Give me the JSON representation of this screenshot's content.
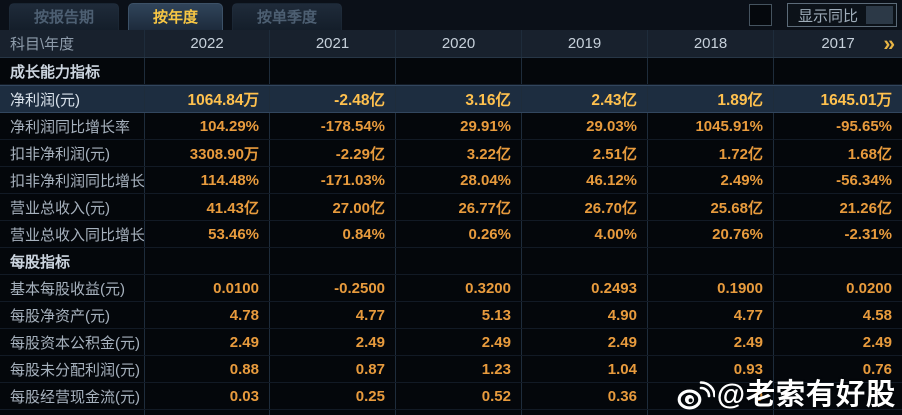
{
  "tabs": [
    {
      "label": "按报告期",
      "active": false
    },
    {
      "label": "按年度",
      "active": true
    },
    {
      "label": "按单季度",
      "active": false
    }
  ],
  "controls": {
    "yoy_checkbox_checked": false,
    "show_yoy_label": "显示同比"
  },
  "table": {
    "corner_label": "科目\\年度",
    "years": [
      "2022",
      "2021",
      "2020",
      "2019",
      "2018",
      "2017"
    ],
    "more_label": "»",
    "rows": [
      {
        "type": "section",
        "label": "成长能力指标"
      },
      {
        "type": "data",
        "label": "净利润(元)",
        "highlight": true,
        "values": [
          "1064.84万",
          "-2.48亿",
          "3.16亿",
          "2.43亿",
          "1.89亿",
          "1645.01万"
        ]
      },
      {
        "type": "data",
        "label": "净利润同比增长率",
        "values": [
          "104.29%",
          "-178.54%",
          "29.91%",
          "29.03%",
          "1045.91%",
          "-95.65%"
        ]
      },
      {
        "type": "data",
        "label": "扣非净利润(元)",
        "values": [
          "3308.90万",
          "-2.29亿",
          "3.22亿",
          "2.51亿",
          "1.72亿",
          "1.68亿"
        ]
      },
      {
        "type": "data",
        "label": "扣非净利润同比增长率",
        "values": [
          "114.48%",
          "-171.03%",
          "28.04%",
          "46.12%",
          "2.49%",
          "-56.34%"
        ]
      },
      {
        "type": "data",
        "label": "营业总收入(元)",
        "values": [
          "41.43亿",
          "27.00亿",
          "26.77亿",
          "26.70亿",
          "25.68亿",
          "21.26亿"
        ]
      },
      {
        "type": "data",
        "label": "营业总收入同比增长率",
        "values": [
          "53.46%",
          "0.84%",
          "0.26%",
          "4.00%",
          "20.76%",
          "-2.31%"
        ]
      },
      {
        "type": "section",
        "label": "每股指标"
      },
      {
        "type": "data",
        "label": "基本每股收益(元)",
        "values": [
          "0.0100",
          "-0.2500",
          "0.3200",
          "0.2493",
          "0.1900",
          "0.0200"
        ]
      },
      {
        "type": "data",
        "label": "每股净资产(元)",
        "values": [
          "4.78",
          "4.77",
          "5.13",
          "4.90",
          "4.77",
          "4.58"
        ]
      },
      {
        "type": "data",
        "label": "每股资本公积金(元)",
        "values": [
          "2.49",
          "2.49",
          "2.49",
          "2.49",
          "2.49",
          "2.49"
        ]
      },
      {
        "type": "data",
        "label": "每股未分配利润(元)",
        "values": [
          "0.88",
          "0.87",
          "1.23",
          "1.04",
          "0.93",
          "0.76"
        ]
      },
      {
        "type": "data",
        "label": "每股经营现金流(元)",
        "values": [
          "0.03",
          "0.25",
          "0.52",
          "0.36",
          "0",
          ""
        ]
      }
    ]
  },
  "watermark": {
    "icon": "weibo-logo-icon",
    "text": "@老索有好股"
  },
  "colors": {
    "active_tab_text": "#f7c644",
    "value_orange": "#e89b3d",
    "highlight_value_gold": "#ffc14e",
    "highlight_row_bg": "#1d2d40",
    "header_bg": "#18212d",
    "body_bg": "#04070b"
  }
}
